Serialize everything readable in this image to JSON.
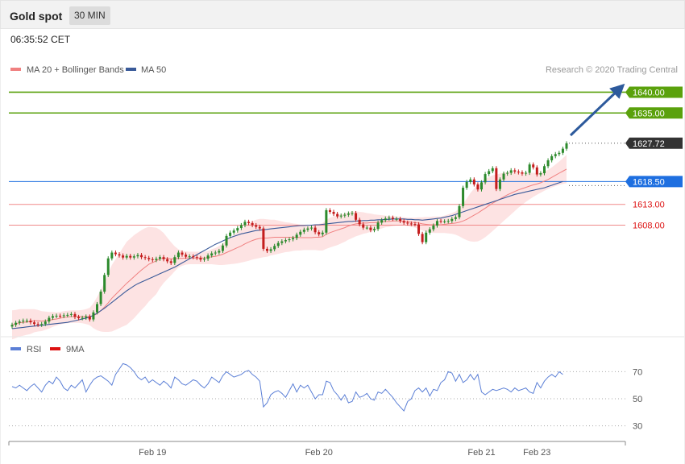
{
  "header": {
    "title": "Gold spot",
    "timeframe": "30 MIN"
  },
  "timestamp": "06:35:52 CET",
  "copyright": "Research © 2020 Trading Central",
  "colors": {
    "up": "#2c8a2c",
    "down": "#c41d1d",
    "ma20": "#f08080",
    "bands": "#fde0e0",
    "ma50": "#3a5a99",
    "target_green": "#5aa10c",
    "pivot_blue": "#1e6fe0",
    "support_red": "#f08a8a",
    "support_text": "#dd1111",
    "current": "#333333",
    "rsi": "#5b7fd6",
    "rsi_ma": "#dd1111",
    "arrow": "#2d5a9c"
  },
  "chart_data": [
    {
      "type": "candlestick",
      "legend": [
        {
          "name": "MA 20 + Bollinger Bands",
          "color": "#f08080"
        },
        {
          "name": "MA 50",
          "color": "#3a5a99"
        }
      ],
      "legend_placement": "top-left",
      "ylim": [
        1582.5,
        1643
      ],
      "x_ticks": [
        {
          "label": "Feb 19",
          "index": 38
        },
        {
          "label": "Feb 20",
          "index": 83
        },
        {
          "label": "Feb 21",
          "index": 127
        },
        {
          "label": "Feb 23",
          "index": 142
        }
      ],
      "levels": [
        {
          "value": 1640.0,
          "label": "1640.00",
          "kind": "resistance"
        },
        {
          "value": 1635.0,
          "label": "1635.00",
          "kind": "resistance"
        },
        {
          "value": 1627.72,
          "label": "1627.72",
          "kind": "current"
        },
        {
          "value": 1618.5,
          "label": "1618.50",
          "kind": "pivot"
        },
        {
          "value": 1613.0,
          "label": "1613.00",
          "kind": "support"
        },
        {
          "value": 1608.0,
          "label": "1608.00",
          "kind": "support"
        }
      ],
      "candles_close": [
        1584,
        1584.5,
        1584.8,
        1585,
        1585,
        1584.6,
        1584.2,
        1584,
        1584.2,
        1584.8,
        1585.7,
        1586.1,
        1586.2,
        1586.1,
        1586.3,
        1586.4,
        1586.6,
        1585.9,
        1585.6,
        1585.7,
        1586,
        1585.3,
        1587,
        1589,
        1592,
        1596,
        1600,
        1601.4,
        1601,
        1600.7,
        1600.2,
        1600.6,
        1600.2,
        1600.5,
        1600.8,
        1600.3,
        1600.1,
        1599.8,
        1599.6,
        1599.9,
        1600.3,
        1599.8,
        1599.3,
        1598.9,
        1600.3,
        1601.4,
        1600.9,
        1600.4,
        1600.5,
        1600.3,
        1600.1,
        1599.7,
        1599.9,
        1600.7,
        1601.2,
        1601.4,
        1601.8,
        1603.1,
        1605.4,
        1606.2,
        1606.7,
        1607.3,
        1608,
        1608.8,
        1608.5,
        1608,
        1607.6,
        1607.2,
        1602.3,
        1601.8,
        1602.2,
        1603,
        1603.7,
        1604.1,
        1604.4,
        1604.6,
        1604.9,
        1605.7,
        1606.4,
        1606.9,
        1607.2,
        1607.4,
        1606.3,
        1605.8,
        1606.2,
        1611.6,
        1611.2,
        1610.7,
        1610.1,
        1610.3,
        1610.5,
        1610.8,
        1610.9,
        1609.3,
        1608.2,
        1607.4,
        1607.4,
        1606.8,
        1607.1,
        1608.6,
        1609.2,
        1609.6,
        1609.8,
        1609.5,
        1609.5,
        1609,
        1608.6,
        1608.4,
        1608.3,
        1608.2,
        1605.9,
        1603.9,
        1606.2,
        1607,
        1607.9,
        1609,
        1608.9,
        1608.9,
        1609,
        1609.5,
        1609.9,
        1612.6,
        1617,
        1618.4,
        1619,
        1617.8,
        1616.6,
        1618.3,
        1620.3,
        1621,
        1621.7,
        1616.7,
        1619,
        1620.4,
        1620.6,
        1621.2,
        1620.9,
        1620.7,
        1620.4,
        1620.6,
        1622.6,
        1621.9,
        1620.2,
        1620.5,
        1622.2,
        1623.6,
        1624.6,
        1625.1,
        1625.4,
        1626.4,
        1627.7
      ],
      "ma20": [
        1584,
        1584.2,
        1584.5,
        1584.6,
        1584.7,
        1584.8,
        1585,
        1585,
        1584.9,
        1585,
        1585.1,
        1585.3,
        1585.4,
        1585.6,
        1585.8,
        1585.9,
        1586,
        1586,
        1586,
        1586,
        1586,
        1586,
        1586.2,
        1586.7,
        1587.4,
        1588.3,
        1589.3,
        1590.4,
        1591.3,
        1592.2,
        1593.1,
        1594,
        1594.8,
        1595.6,
        1596.4,
        1597.2,
        1597.9,
        1598.6,
        1599,
        1599.4,
        1599.9,
        1600.1,
        1600,
        1599.9,
        1599.9,
        1600,
        1600,
        1600.1,
        1600.1,
        1600.1,
        1600.1,
        1600.1,
        1600.1,
        1600.2,
        1600.4,
        1600.5,
        1600.7,
        1601,
        1601.4,
        1601.8,
        1602.2,
        1602.6,
        1603,
        1603.5,
        1603.9,
        1604.3,
        1604.6,
        1604.8,
        1604.9,
        1604.9,
        1605,
        1605.1,
        1605.1,
        1605.1,
        1605.1,
        1605.1,
        1605.1,
        1605.1,
        1605,
        1605,
        1605,
        1605,
        1605.1,
        1605.1,
        1605.2,
        1605.8,
        1606.2,
        1606.5,
        1606.8,
        1607.1,
        1607.4,
        1607.8,
        1608.1,
        1608.3,
        1608.4,
        1608.5,
        1608.5,
        1608.6,
        1608.6,
        1608.7,
        1608.8,
        1608.9,
        1608.9,
        1609,
        1609,
        1609,
        1608.9,
        1608.8,
        1608.7,
        1608.6,
        1608.5,
        1608.3,
        1608.2,
        1608.1,
        1608.1,
        1608.1,
        1608.1,
        1608.2,
        1608.3,
        1608.4,
        1608.5,
        1608.7,
        1609,
        1609.4,
        1609.9,
        1610.4,
        1610.9,
        1611.5,
        1612.1,
        1612.7,
        1613.3,
        1613.8,
        1614.3,
        1614.8,
        1615.3,
        1615.7,
        1616.1,
        1616.5,
        1616.8,
        1617.1,
        1617.4,
        1617.7,
        1617.9,
        1618.2,
        1618.6,
        1619,
        1619.5,
        1620,
        1620.5,
        1621,
        1621.5
      ],
      "band_half_width": [
        3.5,
        3.4,
        3.3,
        3.2,
        3.1,
        3,
        2.8,
        2.6,
        2.4,
        2.2,
        2,
        1.8,
        1.6,
        1.5,
        1.5,
        1.5,
        1.5,
        1.5,
        1.5,
        1.6,
        1.8,
        2.1,
        3,
        4,
        5,
        6,
        7,
        8,
        8.5,
        9,
        9.5,
        10,
        10,
        10,
        9.8,
        9.6,
        9.4,
        9,
        8.5,
        8,
        7,
        6,
        5,
        4,
        3,
        2.2,
        1.8,
        1.6,
        1.5,
        1.5,
        1.5,
        1.5,
        1.5,
        1.6,
        1.8,
        2,
        2.3,
        2.6,
        2.9,
        3.2,
        3.5,
        3.8,
        4,
        4.3,
        4.5,
        4.6,
        4.7,
        4.7,
        4.6,
        4.5,
        4.3,
        4.2,
        4,
        3.8,
        3.6,
        3.5,
        3.3,
        3.2,
        3.1,
        3,
        3,
        3,
        3.1,
        3.2,
        3.3,
        3.5,
        3.6,
        3.6,
        3.6,
        3.5,
        3.4,
        3.3,
        3.2,
        3,
        2.8,
        2.6,
        2.4,
        2.2,
        2,
        1.8,
        1.6,
        1.4,
        1.3,
        1.2,
        1.1,
        1,
        1,
        1,
        1.1,
        1.2,
        1.4,
        1.6,
        1.8,
        1.9,
        2,
        2,
        2,
        2.1,
        2.3,
        2.5,
        2.8,
        3.4,
        4.2,
        5,
        5.8,
        6.4,
        6.8,
        7,
        7,
        6.9,
        6.7,
        6.4,
        6.1,
        5.8,
        5.5,
        5.1,
        4.7,
        4.3,
        3.9,
        3.5,
        3.2,
        2.9,
        2.6,
        2.4,
        2.3,
        2.3,
        2.4,
        2.6,
        2.8,
        3.1,
        3.4
      ],
      "ma50": [
        1583.1,
        1583.2,
        1583.3,
        1583.4,
        1583.5,
        1583.6,
        1583.7,
        1583.8,
        1583.9,
        1584,
        1584.1,
        1584.2,
        1584.3,
        1584.4,
        1584.5,
        1584.6,
        1584.8,
        1585,
        1585.2,
        1585.4,
        1585.6,
        1585.9,
        1586.3,
        1586.8,
        1587.4,
        1588,
        1588.7,
        1589.4,
        1590.1,
        1590.8,
        1591.5,
        1592.2,
        1592.8,
        1593.4,
        1593.9,
        1594.3,
        1594.7,
        1595.1,
        1595.5,
        1595.9,
        1596.3,
        1596.7,
        1597.1,
        1597.5,
        1597.9,
        1598.4,
        1598.9,
        1599.4,
        1599.9,
        1600.4,
        1600.9,
        1601.4,
        1601.9,
        1602.4,
        1602.9,
        1603.4,
        1603.8,
        1604.2,
        1604.6,
        1605,
        1605.3,
        1605.6,
        1605.9,
        1606.1,
        1606.3,
        1606.5,
        1606.7,
        1606.8,
        1606.9,
        1607,
        1607.1,
        1607.2,
        1607.3,
        1607.4,
        1607.5,
        1607.6,
        1607.7,
        1607.8,
        1607.9,
        1607.9,
        1608,
        1608,
        1608.1,
        1608.1,
        1608.2,
        1608.3,
        1608.4,
        1608.5,
        1608.6,
        1608.7,
        1608.8,
        1608.9,
        1608.9,
        1609,
        1609,
        1609.1,
        1609.1,
        1609.2,
        1609.2,
        1609.3,
        1609.3,
        1609.4,
        1609.4,
        1609.5,
        1609.5,
        1609.5,
        1609.5,
        1609.4,
        1609.4,
        1609.3,
        1609.3,
        1609.2,
        1609.3,
        1609.4,
        1609.5,
        1609.6,
        1609.7,
        1609.9,
        1610.1,
        1610.3,
        1610.6,
        1610.9,
        1611.2,
        1611.5,
        1611.8,
        1612.1,
        1612.4,
        1612.7,
        1613,
        1613.3,
        1613.6,
        1613.9,
        1614.2,
        1614.5,
        1614.8,
        1615.1,
        1615.4,
        1615.6,
        1615.8,
        1616,
        1616.2,
        1616.4,
        1616.6,
        1616.8,
        1617,
        1617.3,
        1617.6,
        1617.9,
        1618.2,
        1618.5
      ]
    },
    {
      "type": "line",
      "legend": [
        {
          "name": "RSI",
          "color": "#5b7fd6"
        },
        {
          "name": "9MA",
          "color": "#dd1111"
        }
      ],
      "legend_placement": "top-left",
      "ylim": [
        22,
        78
      ],
      "y_ticks": [
        70,
        50,
        30
      ],
      "series": [
        {
          "name": "RSI",
          "values": [
            59,
            58,
            60,
            58,
            56,
            59,
            61,
            58,
            55,
            60,
            63,
            61,
            66,
            63,
            58,
            56,
            60,
            58,
            61,
            64,
            55,
            60,
            64,
            66,
            67,
            65,
            63,
            60,
            68,
            72,
            76,
            75,
            73,
            70,
            66,
            64,
            66,
            62,
            64,
            62,
            60,
            63,
            61,
            58,
            66,
            64,
            61,
            60,
            62,
            64,
            63,
            60,
            58,
            61,
            66,
            64,
            62,
            67,
            70,
            68,
            66,
            67,
            68,
            70,
            71,
            68,
            66,
            63,
            44,
            47,
            53,
            55,
            56,
            54,
            51,
            56,
            61,
            55,
            60,
            58,
            60,
            55,
            50,
            53,
            53,
            63,
            62,
            56,
            53,
            49,
            53,
            47,
            48,
            55,
            51,
            52,
            54,
            50,
            49,
            55,
            54,
            57,
            54,
            51,
            47,
            44,
            41,
            48,
            50,
            56,
            58,
            55,
            58,
            52,
            57,
            56,
            62,
            64,
            70,
            69,
            63,
            68,
            62,
            64,
            68,
            64,
            68,
            55,
            53,
            55,
            57,
            56,
            57,
            58,
            57,
            55,
            58,
            56,
            57,
            58,
            55,
            54,
            62,
            58,
            63,
            66,
            68,
            66,
            70,
            68
          ]
        }
      ]
    }
  ]
}
